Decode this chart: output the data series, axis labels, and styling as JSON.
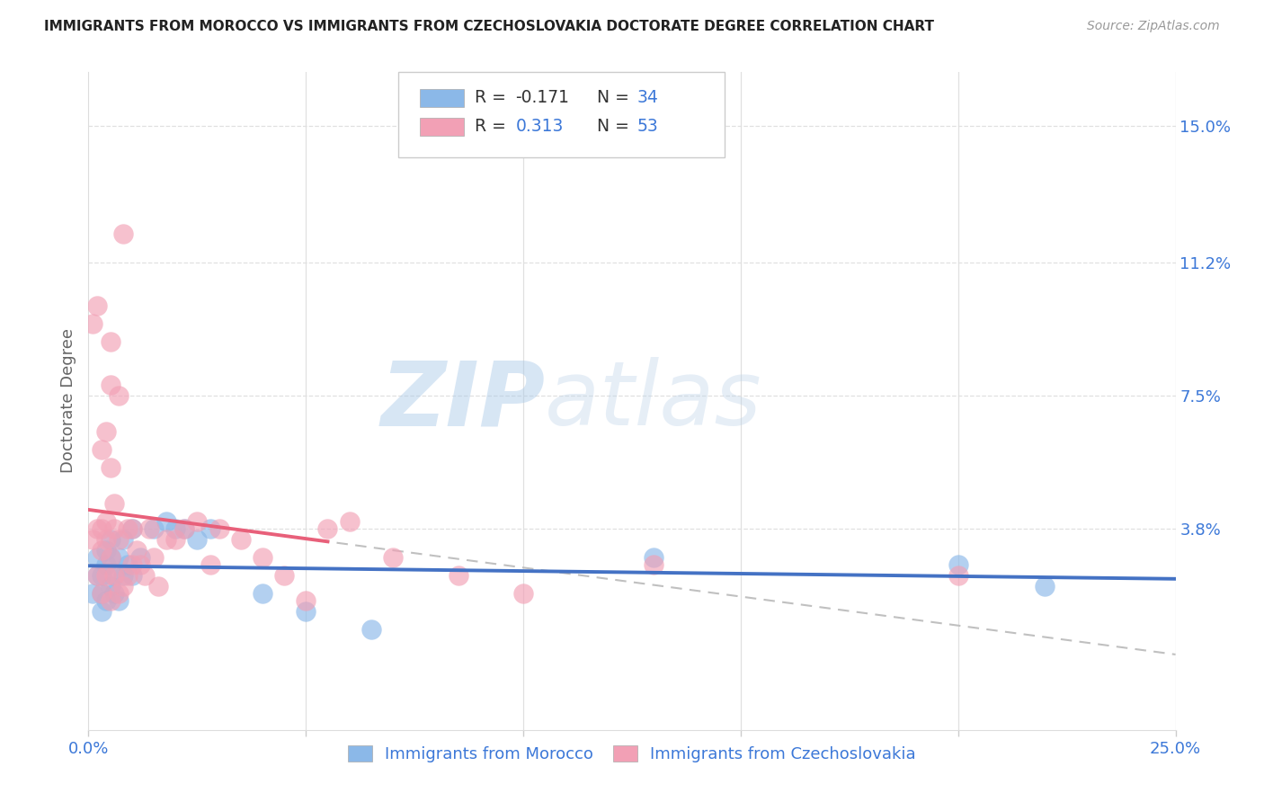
{
  "title": "IMMIGRANTS FROM MOROCCO VS IMMIGRANTS FROM CZECHOSLOVAKIA DOCTORATE DEGREE CORRELATION CHART",
  "source": "Source: ZipAtlas.com",
  "ylabel": "Doctorate Degree",
  "ytick_labels": [
    "15.0%",
    "11.2%",
    "7.5%",
    "3.8%"
  ],
  "ytick_values": [
    0.15,
    0.112,
    0.075,
    0.038
  ],
  "xlim": [
    0.0,
    0.25
  ],
  "ylim": [
    -0.018,
    0.165
  ],
  "legend1_r": "-0.171",
  "legend1_n": "34",
  "legend2_r": "0.313",
  "legend2_n": "53",
  "color_morocco": "#8BB8E8",
  "color_czech": "#F2A0B5",
  "color_morocco_line": "#4472C4",
  "color_czech_line": "#E8607A",
  "watermark_zip": "ZIP",
  "watermark_atlas": "atlas",
  "morocco_x": [
    0.001,
    0.002,
    0.002,
    0.003,
    0.003,
    0.003,
    0.004,
    0.004,
    0.004,
    0.005,
    0.005,
    0.005,
    0.006,
    0.006,
    0.007,
    0.007,
    0.008,
    0.008,
    0.009,
    0.01,
    0.01,
    0.012,
    0.015,
    0.018,
    0.02,
    0.022,
    0.025,
    0.028,
    0.04,
    0.05,
    0.065,
    0.13,
    0.2,
    0.22
  ],
  "morocco_y": [
    0.02,
    0.025,
    0.03,
    0.015,
    0.02,
    0.025,
    0.018,
    0.028,
    0.032,
    0.022,
    0.03,
    0.035,
    0.02,
    0.025,
    0.018,
    0.03,
    0.025,
    0.035,
    0.028,
    0.025,
    0.038,
    0.03,
    0.038,
    0.04,
    0.038,
    0.038,
    0.035,
    0.038,
    0.02,
    0.015,
    0.01,
    0.03,
    0.028,
    0.022
  ],
  "czech_x": [
    0.001,
    0.001,
    0.002,
    0.002,
    0.002,
    0.003,
    0.003,
    0.003,
    0.003,
    0.004,
    0.004,
    0.004,
    0.004,
    0.005,
    0.005,
    0.005,
    0.005,
    0.005,
    0.006,
    0.006,
    0.006,
    0.007,
    0.007,
    0.007,
    0.008,
    0.008,
    0.009,
    0.009,
    0.01,
    0.01,
    0.011,
    0.012,
    0.013,
    0.014,
    0.015,
    0.016,
    0.018,
    0.02,
    0.022,
    0.025,
    0.028,
    0.03,
    0.035,
    0.04,
    0.045,
    0.05,
    0.055,
    0.06,
    0.07,
    0.085,
    0.1,
    0.13,
    0.2
  ],
  "czech_y": [
    0.035,
    0.095,
    0.025,
    0.038,
    0.1,
    0.02,
    0.032,
    0.038,
    0.06,
    0.025,
    0.035,
    0.04,
    0.065,
    0.018,
    0.03,
    0.055,
    0.078,
    0.09,
    0.025,
    0.038,
    0.045,
    0.02,
    0.035,
    0.075,
    0.022,
    0.12,
    0.025,
    0.038,
    0.028,
    0.038,
    0.032,
    0.028,
    0.025,
    0.038,
    0.03,
    0.022,
    0.035,
    0.035,
    0.038,
    0.04,
    0.028,
    0.038,
    0.035,
    0.03,
    0.025,
    0.018,
    0.038,
    0.04,
    0.03,
    0.025,
    0.02,
    0.028,
    0.025
  ]
}
